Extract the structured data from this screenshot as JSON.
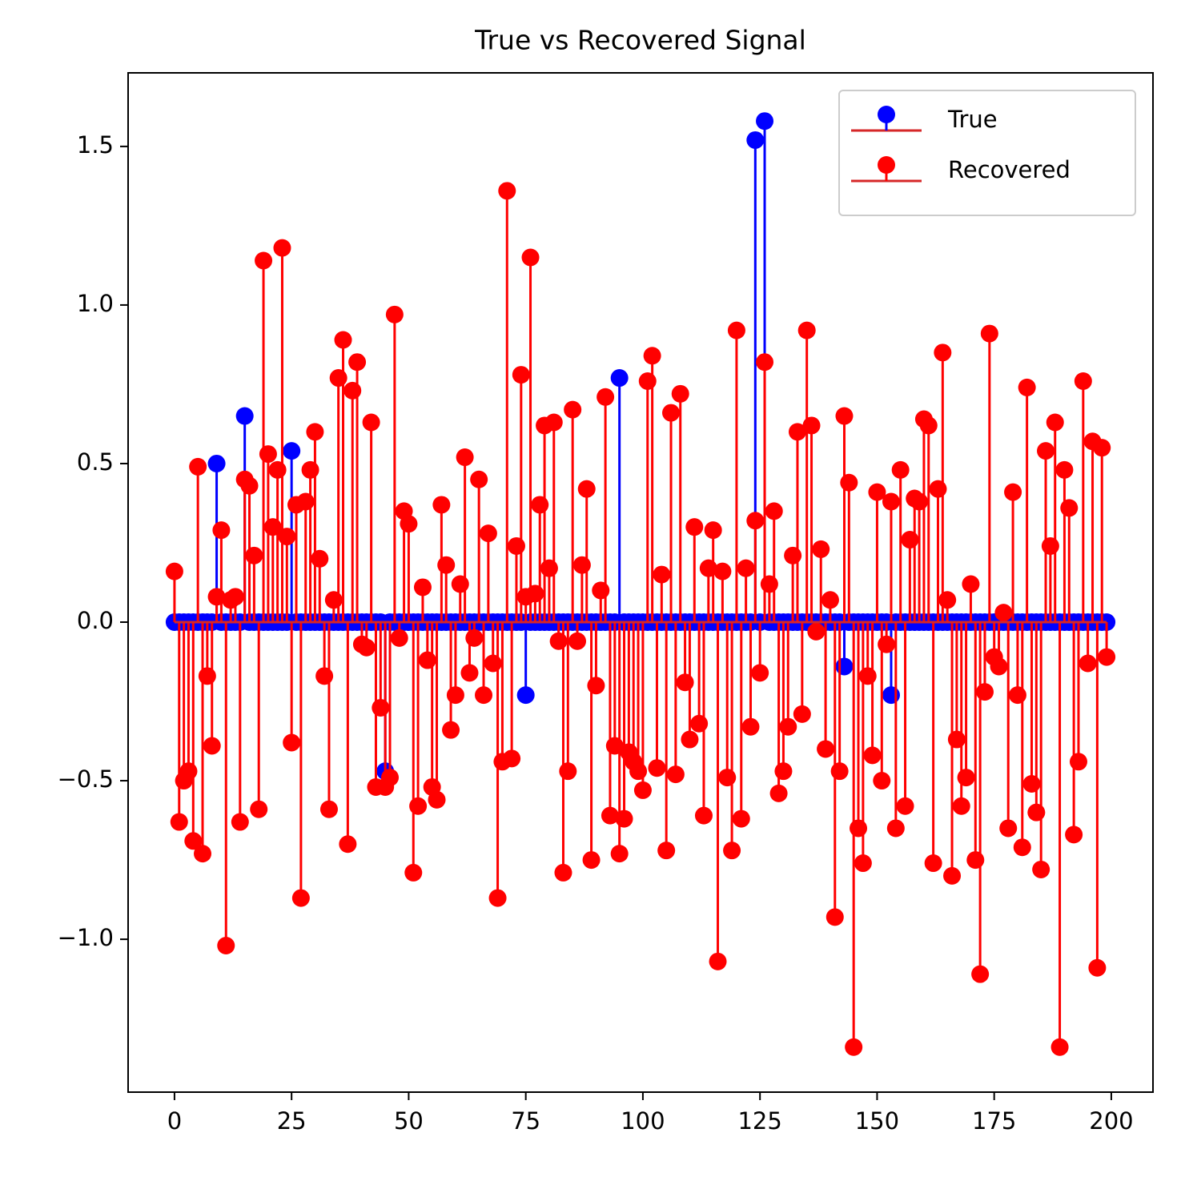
{
  "chart_data": {
    "type": "stem",
    "title": "True vs Recovered Signal",
    "x": [
      0,
      1,
      2,
      3,
      4,
      5,
      6,
      7,
      8,
      9,
      10,
      11,
      12,
      13,
      14,
      15,
      16,
      17,
      18,
      19,
      20,
      21,
      22,
      23,
      24,
      25,
      26,
      27,
      28,
      29,
      30,
      31,
      32,
      33,
      34,
      35,
      36,
      37,
      38,
      39,
      40,
      41,
      42,
      43,
      44,
      45,
      46,
      47,
      48,
      49,
      50,
      51,
      52,
      53,
      54,
      55,
      56,
      57,
      58,
      59,
      60,
      61,
      62,
      63,
      64,
      65,
      66,
      67,
      68,
      69,
      70,
      71,
      72,
      73,
      74,
      75,
      76,
      77,
      78,
      79,
      80,
      81,
      82,
      83,
      84,
      85,
      86,
      87,
      88,
      89,
      90,
      91,
      92,
      93,
      94,
      95,
      96,
      97,
      98,
      99,
      100,
      101,
      102,
      103,
      104,
      105,
      106,
      107,
      108,
      109,
      110,
      111,
      112,
      113,
      114,
      115,
      116,
      117,
      118,
      119,
      120,
      121,
      122,
      123,
      124,
      125,
      126,
      127,
      128,
      129,
      130,
      131,
      132,
      133,
      134,
      135,
      136,
      137,
      138,
      139,
      140,
      141,
      142,
      143,
      144,
      145,
      146,
      147,
      148,
      149,
      150,
      151,
      152,
      153,
      154,
      155,
      156,
      157,
      158,
      159,
      160,
      161,
      162,
      163,
      164,
      165,
      166,
      167,
      168,
      169,
      170,
      171,
      172,
      173,
      174,
      175,
      176,
      177,
      178,
      179,
      180,
      181,
      182,
      183,
      184,
      185,
      186,
      187,
      188,
      189,
      190,
      191,
      192,
      193,
      194,
      195,
      196,
      197,
      198,
      199
    ],
    "series": [
      {
        "name": "True",
        "color": "#0000ff",
        "baseline_color": "#d62728",
        "values": [
          0,
          0,
          0,
          0,
          0,
          0,
          0,
          0,
          0,
          0.5,
          0,
          0,
          0,
          0,
          0,
          0.65,
          0,
          0,
          0,
          0,
          0,
          0,
          0,
          0,
          0,
          0.54,
          0,
          0,
          0,
          0,
          0,
          0,
          0,
          0,
          0,
          0,
          0,
          0,
          0,
          0,
          0,
          0,
          0,
          0,
          0,
          -0.47,
          0,
          0,
          0,
          0,
          0,
          0,
          0,
          0,
          0,
          0,
          0,
          0,
          0,
          0,
          0,
          0,
          0,
          0,
          0,
          0,
          0,
          0,
          0,
          0,
          0,
          0,
          0,
          0,
          0,
          -0.23,
          0,
          0,
          0,
          0,
          0,
          0,
          0,
          0,
          0,
          0,
          0,
          0,
          0,
          0,
          0,
          0,
          0,
          0,
          0,
          0.77,
          0,
          0,
          0,
          0,
          0,
          0,
          0,
          0,
          0,
          0,
          0,
          0,
          0,
          0,
          0,
          0,
          0,
          0,
          0,
          0,
          0,
          0,
          0,
          0,
          0,
          0,
          0,
          0,
          1.52,
          0,
          1.58,
          0,
          0,
          0,
          0,
          0,
          0,
          0,
          0,
          0,
          0,
          0,
          0,
          0,
          0,
          0,
          0,
          -0.14,
          0,
          0,
          0,
          0,
          0,
          0,
          0,
          0,
          0,
          -0.23,
          0,
          0,
          0,
          0,
          0,
          0,
          0,
          0,
          0,
          0,
          0,
          0,
          0,
          0,
          0,
          0,
          0,
          0,
          0,
          0,
          0,
          0,
          0,
          0,
          0,
          0,
          0,
          0,
          0,
          0,
          0,
          0,
          0,
          0,
          0,
          0,
          0,
          0,
          0,
          0,
          0,
          0,
          0,
          0,
          0,
          0
        ]
      },
      {
        "name": "Recovered",
        "color": "#ff0000",
        "baseline_color": "#d62728",
        "values": [
          0.16,
          -0.63,
          -0.5,
          -0.47,
          -0.69,
          0.49,
          -0.73,
          -0.17,
          -0.39,
          0.08,
          0.29,
          -1.02,
          0.07,
          0.08,
          -0.63,
          0.45,
          0.43,
          0.21,
          -0.59,
          1.14,
          0.53,
          0.3,
          0.48,
          1.18,
          0.27,
          -0.38,
          0.37,
          -0.87,
          0.38,
          0.48,
          0.6,
          0.2,
          -0.17,
          -0.59,
          0.07,
          0.77,
          0.89,
          -0.7,
          0.73,
          0.82,
          -0.07,
          -0.08,
          0.63,
          -0.52,
          -0.27,
          -0.52,
          -0.49,
          0.97,
          -0.05,
          0.35,
          0.31,
          -0.79,
          -0.58,
          0.11,
          -0.12,
          -0.52,
          -0.56,
          0.37,
          0.18,
          -0.34,
          -0.23,
          0.12,
          0.52,
          -0.16,
          -0.05,
          0.45,
          -0.23,
          0.28,
          -0.13,
          -0.87,
          -0.44,
          1.36,
          -0.43,
          0.24,
          0.78,
          0.08,
          1.15,
          0.09,
          0.37,
          0.62,
          0.17,
          0.63,
          -0.06,
          -0.79,
          -0.47,
          0.67,
          -0.06,
          0.18,
          0.42,
          -0.75,
          -0.2,
          0.1,
          0.71,
          -0.61,
          -0.39,
          -0.73,
          -0.62,
          -0.41,
          -0.44,
          -0.47,
          -0.53,
          0.76,
          0.84,
          -0.46,
          0.15,
          -0.72,
          0.66,
          -0.48,
          0.72,
          -0.19,
          -0.37,
          0.3,
          -0.32,
          -0.61,
          0.17,
          0.29,
          -1.07,
          0.16,
          -0.49,
          -0.72,
          0.92,
          -0.62,
          0.17,
          -0.33,
          0.32,
          -0.16,
          0.82,
          0.12,
          0.35,
          -0.54,
          -0.47,
          -0.33,
          0.21,
          0.6,
          -0.29,
          0.92,
          0.62,
          -0.03,
          0.23,
          -0.4,
          0.07,
          -0.93,
          -0.47,
          0.65,
          0.44,
          -1.34,
          -0.65,
          -0.76,
          -0.17,
          -0.42,
          0.41,
          -0.5,
          -0.07,
          0.38,
          -0.65,
          0.48,
          -0.58,
          0.26,
          0.39,
          0.38,
          0.64,
          0.62,
          -0.76,
          0.42,
          0.85,
          0.07,
          -0.8,
          -0.37,
          -0.58,
          -0.49,
          0.12,
          -0.75,
          -1.11,
          -0.22,
          0.91,
          -0.11,
          -0.14,
          0.03,
          -0.65,
          0.41,
          -0.23,
          -0.71,
          0.74,
          -0.51,
          -0.6,
          -0.78,
          0.54,
          0.24,
          0.63,
          -1.34,
          0.48,
          0.36,
          -0.67,
          -0.44,
          0.76,
          -0.13,
          0.57,
          -1.09,
          0.55,
          -0.11
        ]
      }
    ],
    "xlim": [
      -9.9,
      208.9
    ],
    "ylim": [
      -1.482,
      1.732
    ],
    "xticks": [
      0,
      25,
      50,
      75,
      100,
      125,
      150,
      175,
      200
    ],
    "yticks": [
      {
        "value": -1.0,
        "label": "−1.0"
      },
      {
        "value": -0.5,
        "label": "−0.5"
      },
      {
        "value": 0.0,
        "label": "0.0"
      },
      {
        "value": 0.5,
        "label": "0.5"
      },
      {
        "value": 1.0,
        "label": "1.0"
      },
      {
        "value": 1.5,
        "label": "1.5"
      }
    ],
    "legend": "upper right",
    "grid": false
  }
}
